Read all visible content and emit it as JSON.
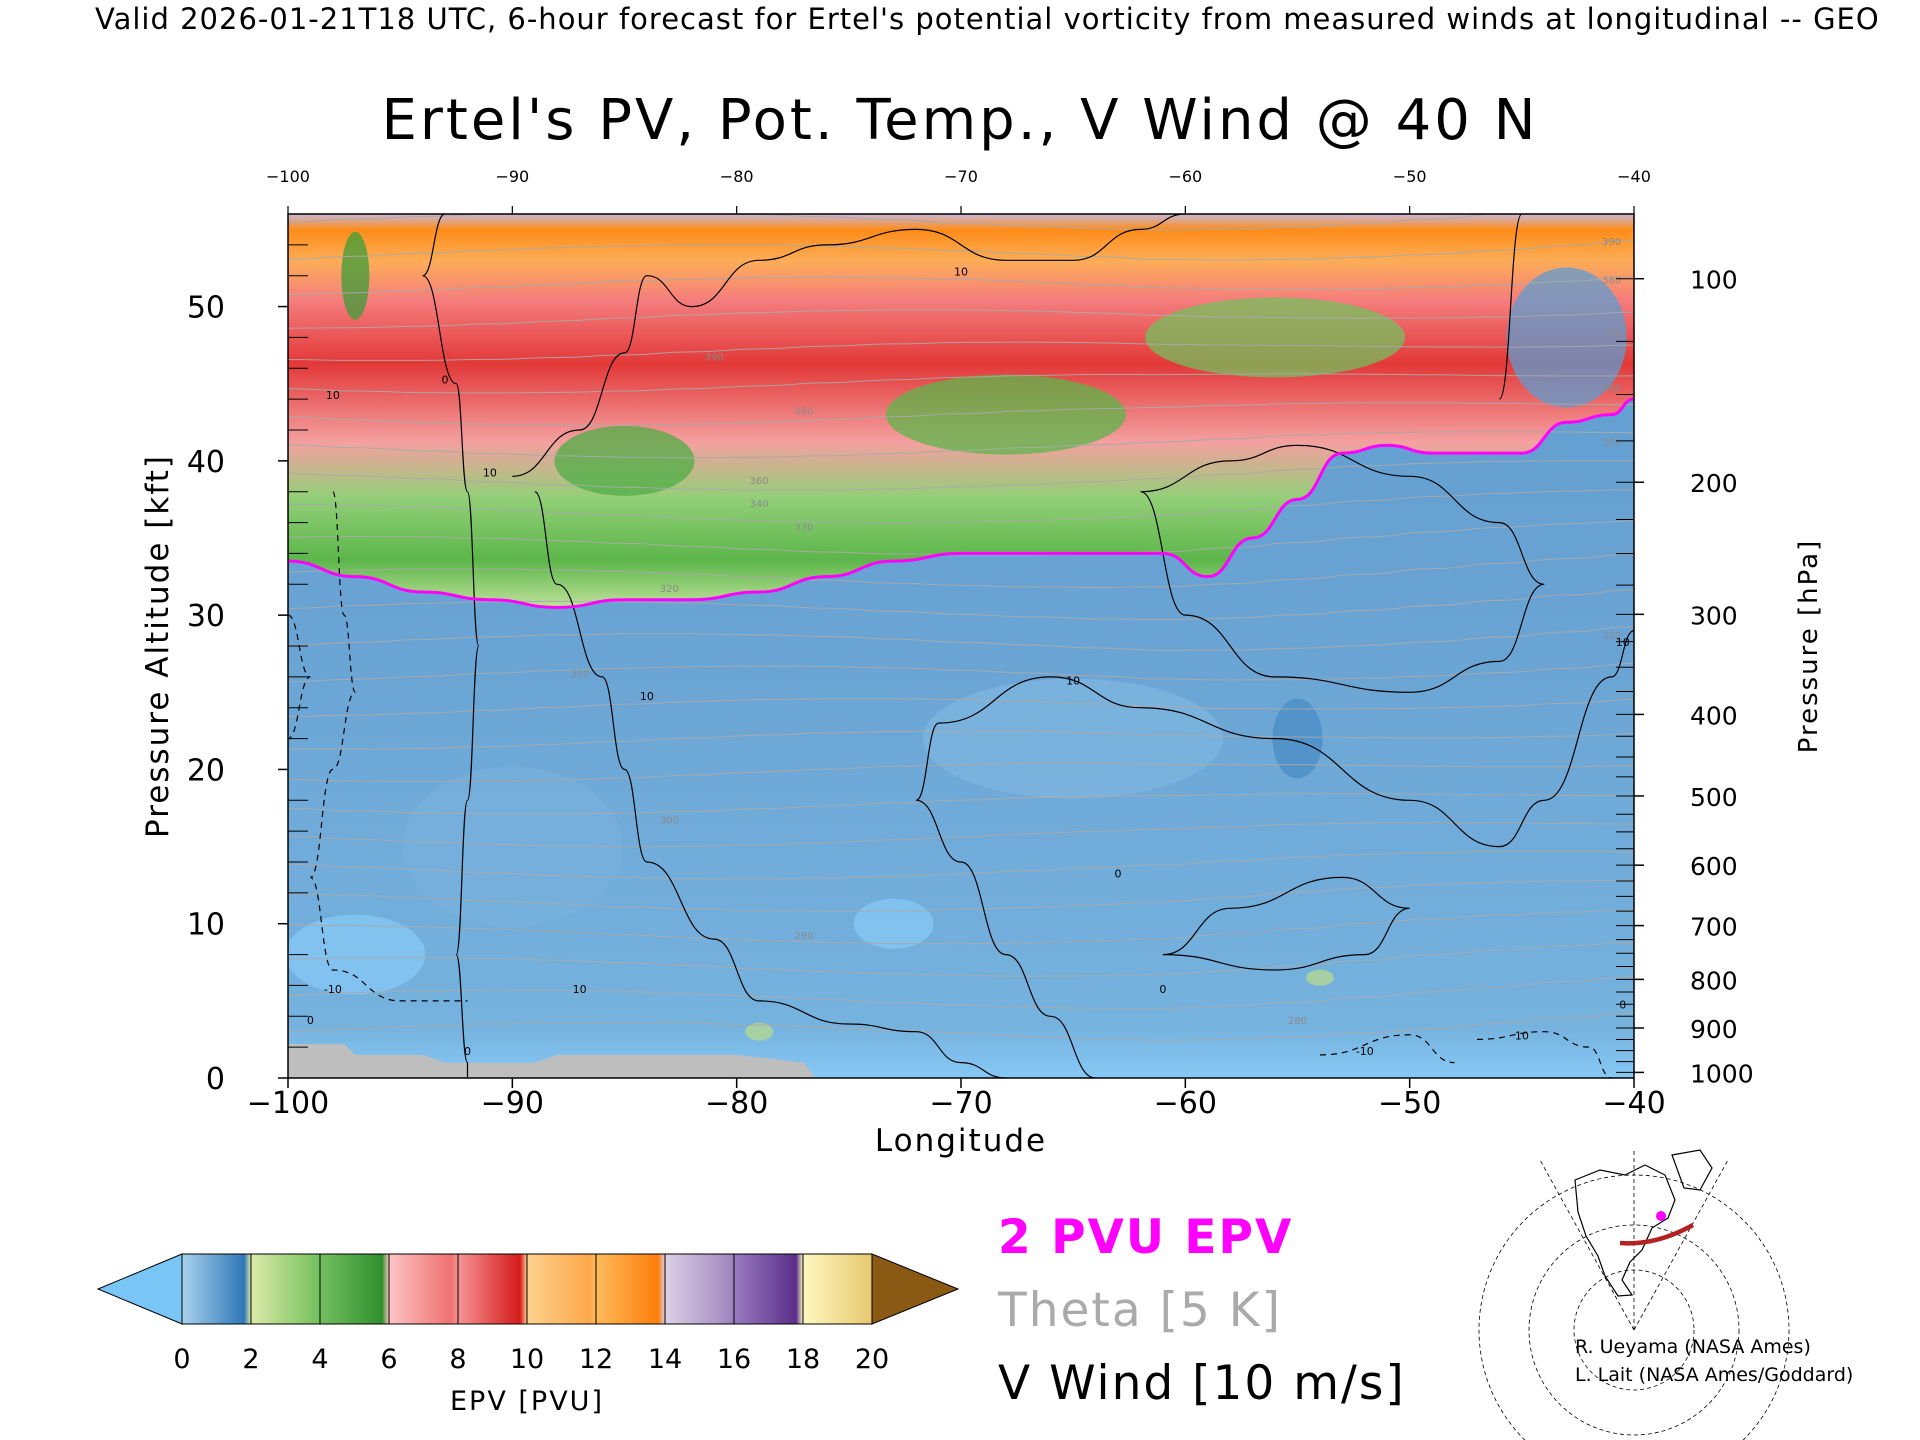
{
  "header": {
    "text": "Valid 2026-01-21T18 UTC, 6-hour forecast for Ertel's potential vorticity from measured winds at longitudinal -- GEO"
  },
  "chart_data": {
    "type": "heatmap",
    "title": "Ertel's PV, Pot. Temp., V Wind @ 40 N",
    "xlabel": "Longitude",
    "ylabel": "Pressure Altitude [kft]",
    "y2label": "Pressure [hPa]",
    "xlim": [
      -100,
      -40
    ],
    "ylim": [
      0,
      56
    ],
    "x_ticks": [
      -100,
      -90,
      -80,
      -70,
      -60,
      -50,
      -40
    ],
    "y_ticks": [
      0,
      10,
      20,
      30,
      40,
      50
    ],
    "pressure_ticks": [
      100,
      200,
      300,
      400,
      500,
      600,
      700,
      800,
      900,
      1000
    ],
    "field": "EPV",
    "colorbar": {
      "label": "EPV [PVU]",
      "ticks": [
        0,
        2,
        4,
        6,
        8,
        10,
        12,
        14,
        16,
        18,
        20
      ],
      "colors": [
        "#79c5f5",
        "#3a86c4",
        "#b7d98f",
        "#3c9e38",
        "#f59c9c",
        "#e22828",
        "#fdb461",
        "#fe8a12",
        "#c4b4d6",
        "#6d3e9a",
        "#fbf2a0",
        "#8a5a14"
      ]
    },
    "tropopause_2pvu": {
      "name": "2 PVU EPV",
      "color": "#ff00ff",
      "lon": [
        -100,
        -97,
        -94,
        -91,
        -88,
        -85,
        -82,
        -79,
        -76,
        -73,
        -70,
        -67,
        -64,
        -61,
        -59,
        -57,
        -55,
        -53,
        -51,
        -49,
        -47,
        -45,
        -43,
        -41,
        -40
      ],
      "alt_kft": [
        33.5,
        32.5,
        31.5,
        31.0,
        30.5,
        31.0,
        31.0,
        31.5,
        32.5,
        33.5,
        34.0,
        34.0,
        34.0,
        34.0,
        32.5,
        35.0,
        37.5,
        40.5,
        41.0,
        40.5,
        40.5,
        40.5,
        42.5,
        43.0,
        44.0
      ]
    },
    "theta_labels": [
      {
        "value": "390",
        "lon": -81,
        "alt": 46.5
      },
      {
        "value": "380",
        "lon": -77,
        "alt": 43.0
      },
      {
        "value": "360",
        "lon": -79,
        "alt": 38.5
      },
      {
        "value": "340",
        "lon": -79,
        "alt": 37.0
      },
      {
        "value": "330",
        "lon": -77,
        "alt": 35.5
      },
      {
        "value": "320",
        "lon": -83,
        "alt": 31.5
      },
      {
        "value": "310",
        "lon": -87,
        "alt": 26.0
      },
      {
        "value": "300",
        "lon": -83,
        "alt": 16.5
      },
      {
        "value": "290",
        "lon": -77,
        "alt": 9.0
      },
      {
        "value": "280",
        "lon": -55,
        "alt": 3.5
      },
      {
        "value": "320",
        "lon": -41,
        "alt": 28.5
      },
      {
        "value": "350",
        "lon": -41,
        "alt": 41.0
      },
      {
        "value": "360",
        "lon": -41,
        "alt": 44.5
      },
      {
        "value": "370",
        "lon": -41,
        "alt": 48.0
      },
      {
        "value": "380",
        "lon": -41,
        "alt": 51.5
      },
      {
        "value": "390",
        "lon": -41,
        "alt": 54.0
      }
    ],
    "wind_labels": [
      {
        "value": "10",
        "lon": -70,
        "alt": 52.0
      },
      {
        "value": "10",
        "lon": -91,
        "alt": 39.0
      },
      {
        "value": "0",
        "lon": -93,
        "alt": 45.0
      },
      {
        "value": "10",
        "lon": -98,
        "alt": 44.0
      },
      {
        "value": "10",
        "lon": -84,
        "alt": 24.5
      },
      {
        "value": "10",
        "lon": -65,
        "alt": 25.5
      },
      {
        "value": "0",
        "lon": -63,
        "alt": 13.0
      },
      {
        "value": "0",
        "lon": -61,
        "alt": 5.5
      },
      {
        "value": "10",
        "lon": -87,
        "alt": 5.5
      },
      {
        "value": "0",
        "lon": -92,
        "alt": 1.5
      },
      {
        "value": "-10",
        "lon": -98,
        "alt": 5.5
      },
      {
        "value": "0",
        "lon": -99,
        "alt": 3.5
      },
      {
        "value": "-10",
        "lon": -52,
        "alt": 1.5
      },
      {
        "value": "10",
        "lon": -45,
        "alt": 2.5
      },
      {
        "value": "0",
        "lon": -40.5,
        "alt": 4.5
      },
      {
        "value": "10",
        "lon": -40.5,
        "alt": 28.0
      }
    ]
  },
  "legend": {
    "pvu": "2 PVU EPV",
    "theta": "Theta [5 K]",
    "vwind": "V Wind [10 m/s]"
  },
  "credits": [
    "R. Ueyama (NASA Ames)",
    "L. Lait (NASA Ames/Goddard)"
  ],
  "colors": {
    "pvu_contour": "#ff00ff",
    "theta_contour": "#aaaaaa",
    "terrain": "#bebebe",
    "section_line": "#b22222"
  }
}
